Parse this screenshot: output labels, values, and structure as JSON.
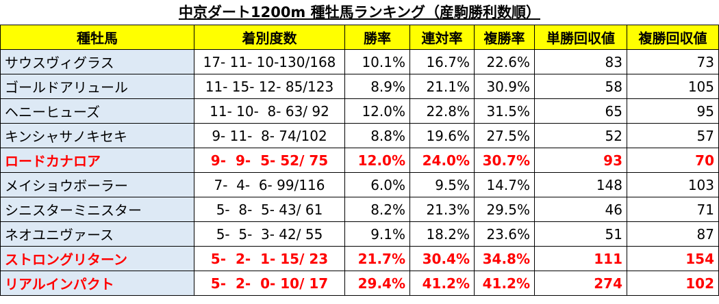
{
  "title": "中京ダート1200m 種牡馬ランキング（産駒勝利数順）",
  "table": {
    "header": [
      "種牡馬",
      "着別度数",
      "勝率",
      "連対率",
      "複勝率",
      "単勝回収値",
      "複勝回収値"
    ],
    "rows": [
      {
        "cells": [
          "サウスヴィグラス",
          "17- 11- 10-130/168",
          "10.1%",
          "16.7%",
          "22.6%",
          "83",
          "73"
        ],
        "highlight": false
      },
      {
        "cells": [
          "ゴールドアリュール",
          "11- 15- 12- 85/123",
          "8.9%",
          "21.1%",
          "30.9%",
          "58",
          "105"
        ],
        "highlight": false
      },
      {
        "cells": [
          "ヘニーヒューズ",
          "11- 10-  8- 63/ 92",
          "12.0%",
          "22.8%",
          "31.5%",
          "65",
          "95"
        ],
        "highlight": false
      },
      {
        "cells": [
          "キンシャサノキセキ",
          "9- 11-  8- 74/102",
          "8.8%",
          "19.6%",
          "27.5%",
          "52",
          "57"
        ],
        "highlight": false
      },
      {
        "cells": [
          "ロードカナロア",
          "9-  9-  5- 52/ 75",
          "12.0%",
          "24.0%",
          "30.7%",
          "93",
          "70"
        ],
        "highlight": true
      },
      {
        "cells": [
          "メイショウボーラー",
          "7-  4-  6- 99/116",
          "6.0%",
          "9.5%",
          "14.7%",
          "148",
          "103"
        ],
        "highlight": false
      },
      {
        "cells": [
          "シニスターミニスター",
          "5-  8-  5- 43/ 61",
          "8.2%",
          "21.3%",
          "29.5%",
          "46",
          "71"
        ],
        "highlight": false
      },
      {
        "cells": [
          "ネオユニヴァース",
          "5-  5-  3- 42/ 55",
          "9.1%",
          "18.2%",
          "23.6%",
          "51",
          "87"
        ],
        "highlight": false
      },
      {
        "cells": [
          "ストロングリターン",
          "5-  2-  1- 15/ 23",
          "21.7%",
          "30.4%",
          "34.8%",
          "111",
          "154"
        ],
        "highlight": true
      },
      {
        "cells": [
          "リアルインパクト",
          "5-  2-  0- 10/ 17",
          "29.4%",
          "41.2%",
          "41.2%",
          "274",
          "102"
        ],
        "highlight": true
      }
    ]
  }
}
